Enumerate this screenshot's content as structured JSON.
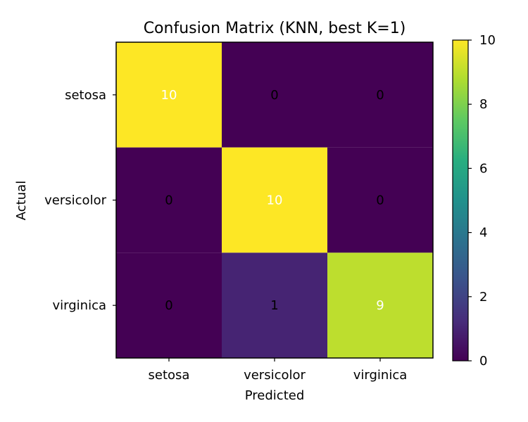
{
  "chart_data": {
    "type": "heatmap",
    "title": "Confusion Matrix (KNN, best K=1)",
    "xlabel": "Predicted",
    "ylabel": "Actual",
    "x_categories": [
      "setosa",
      "versicolor",
      "virginica"
    ],
    "y_categories": [
      "setosa",
      "versicolor",
      "virginica"
    ],
    "values": [
      [
        10,
        0,
        0
      ],
      [
        0,
        10,
        0
      ],
      [
        0,
        1,
        9
      ]
    ],
    "colorbar": {
      "colormap": "viridis",
      "range": [
        0,
        10
      ],
      "ticks": [
        "0",
        "2",
        "4",
        "6",
        "8",
        "10"
      ]
    }
  }
}
